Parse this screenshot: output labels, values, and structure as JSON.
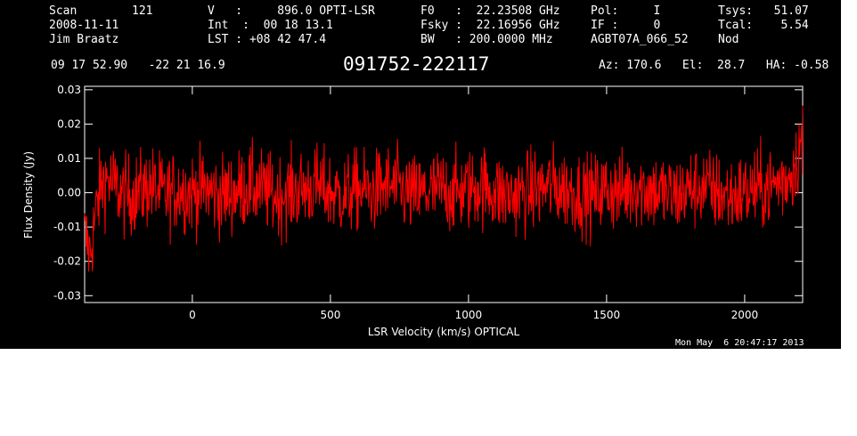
{
  "header": {
    "scan_label": "Scan",
    "scan_value": "121",
    "date": "2008-11-11",
    "observer": "Jim Braatz",
    "v_line": "V   :     896.0 OPTI-LSR",
    "int_line": "Int  :  00 18 13.1",
    "lst_line": "LST : +08 42 47.4",
    "f0_line": "F0   :  22.23508 GHz",
    "fsky_line": "Fsky :  22.16956 GHz",
    "bw_line": "BW   : 200.0000 MHz",
    "pol_line": "Pol:     I",
    "if_line": "IF :     0",
    "project": "AGBT07A_066_52",
    "tsys_line": "Tsys:   51.07",
    "tcal_line": "Tcal:    5.54",
    "mode": "Nod",
    "coords": "09 17 52.90   -22 21 16.9",
    "az_el_ha": "Az: 170.6   El:  28.7   HA: -0.58"
  },
  "datestamp": "Mon May  6 20:47:17 2013",
  "chart_data": {
    "type": "line",
    "title": "091752-222117",
    "xlabel": "LSR Velocity (km/s) OPTICAL",
    "ylabel": "Flux Density (Jy)",
    "xlim": [
      -390,
      2210
    ],
    "ylim": [
      -0.032,
      0.031
    ],
    "x_ticks": [
      0,
      500,
      1000,
      1500,
      2000
    ],
    "x_tick_labels": [
      "0",
      "500",
      "1000",
      "1500",
      "2000"
    ],
    "y_ticks": [
      -0.03,
      -0.02,
      -0.01,
      0.0,
      0.01,
      0.02,
      0.03
    ],
    "y_tick_labels": [
      "-0.03",
      "-0.02",
      "-0.01",
      "0.00",
      "0.01",
      "0.02",
      "0.03"
    ],
    "grid": false,
    "series": [
      {
        "color": "#ff0000",
        "x": [
          -390,
          -370,
          -350,
          -330,
          -310,
          -280,
          -250,
          -200,
          -150,
          -100,
          -50,
          0,
          50,
          100,
          150,
          200,
          250,
          300,
          350,
          400,
          450,
          500,
          550,
          600,
          650,
          700,
          750,
          800,
          850,
          900,
          950,
          1000,
          1050,
          1100,
          1150,
          1200,
          1250,
          1300,
          1350,
          1400,
          1450,
          1500,
          1550,
          1600,
          1650,
          1700,
          1750,
          1800,
          1850,
          1900,
          1950,
          2000,
          2050,
          2100,
          2150,
          2170,
          2190,
          2200
        ],
        "y": [
          -0.012,
          -0.018,
          -0.006,
          0.002,
          0.004,
          0.002,
          -0.001,
          0.0,
          0.002,
          -0.001,
          0.001,
          0.0,
          0.001,
          -0.001,
          0.0,
          0.002,
          0.001,
          -0.001,
          0.0,
          0.001,
          0.002,
          0.0,
          -0.001,
          0.001,
          0.0,
          0.002,
          0.001,
          -0.001,
          0.0,
          0.001,
          0.0,
          0.001,
          0.002,
          0.0,
          -0.001,
          0.0,
          0.001,
          0.002,
          0.001,
          0.0,
          -0.001,
          0.001,
          0.0,
          0.002,
          0.001,
          0.0,
          -0.001,
          0.001,
          0.002,
          0.0,
          -0.001,
          0.0,
          0.001,
          0.002,
          0.004,
          0.006,
          0.01,
          0.014
        ]
      }
    ]
  }
}
